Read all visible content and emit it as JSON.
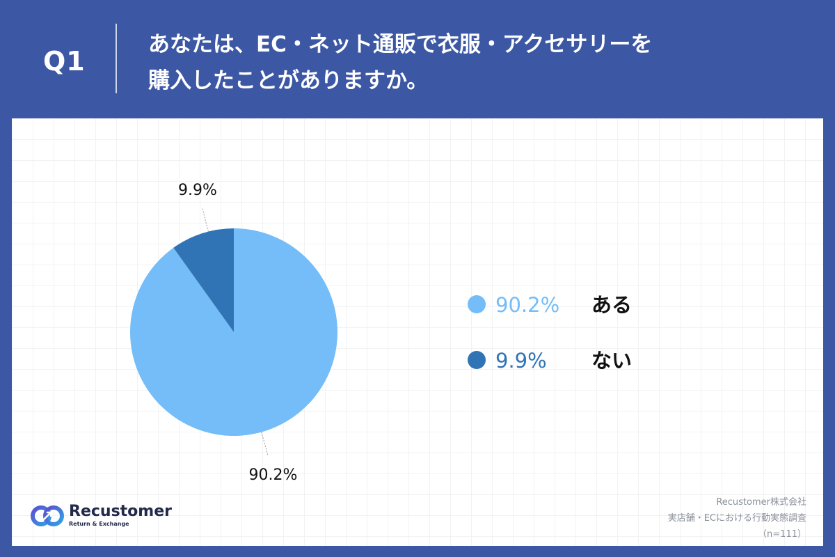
{
  "header": {
    "q_label": "Q1",
    "question_line1": "あなたは、EC・ネット通販で衣服・アクセサリーを",
    "question_line2": "購入したことがありますか。"
  },
  "chart_data": {
    "type": "pie",
    "title": "",
    "slices": [
      {
        "label": "ある",
        "value": 90.2,
        "display": "90.2%",
        "color": "#74BDF8"
      },
      {
        "label": "ない",
        "value": 9.9,
        "display": "9.9%",
        "color": "#3174B5"
      }
    ],
    "start_angle_deg": 0,
    "direction": "clockwise",
    "legend_position": "right"
  },
  "logo": {
    "name": "Recustomer",
    "tagline": "Return & Exchange"
  },
  "source": {
    "line1": "Recustomer株式会社",
    "line2": "実店舗・ECにおける行動実態調査",
    "line3": "（n=111）"
  },
  "colors": {
    "header_bg": "#3C57A3",
    "panel_bg": "#FFFFFF",
    "slice_major": "#74BDF8",
    "slice_minor": "#3174B5"
  }
}
